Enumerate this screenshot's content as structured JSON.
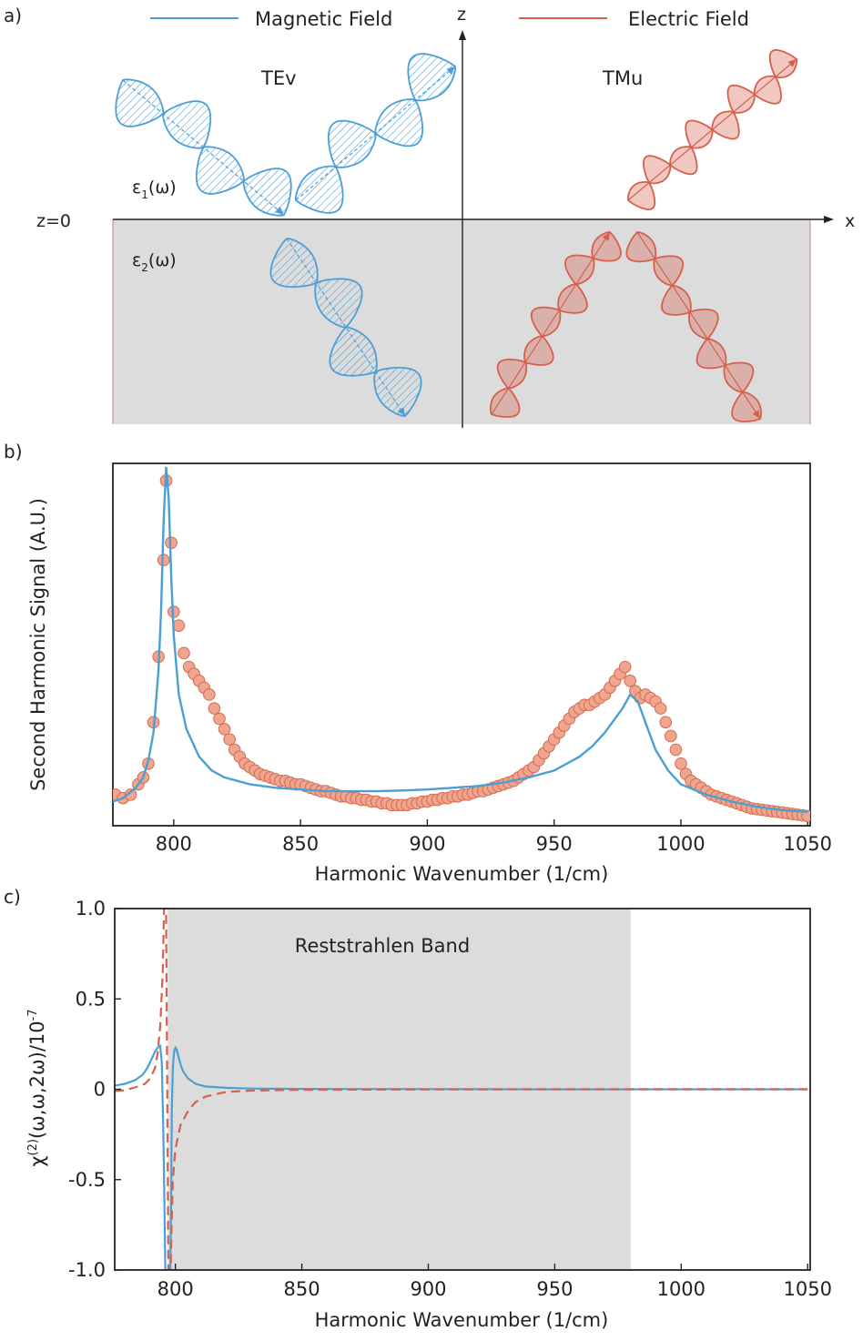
{
  "panels": {
    "a": {
      "label": "a)",
      "legend": {
        "magnetic": "Magnetic Field",
        "electric": "Electric Field"
      },
      "axis_z": "z",
      "axis_x": "x",
      "z0_label": "z=0",
      "teV_label": "TEv",
      "tmu_label": "TMu",
      "eps1_base": "ε",
      "eps1_sub": "1",
      "eps1_arg": "(ω)",
      "eps2_base": "ε",
      "eps2_sub": "2",
      "eps2_arg": "(ω)",
      "colors": {
        "magnetic": "#4c9fd6",
        "electric": "#d6604d",
        "medium": "#dcdcdc"
      }
    },
    "b": {
      "label": "b)"
    },
    "c": {
      "label": "c)",
      "band_label": "Reststrahlen Band"
    }
  },
  "chart_data": [
    {
      "panel": "b",
      "type": "scatter",
      "xlabel": "Harmonic Wavenumber (1/cm)",
      "ylabel": "Second Harmonic Signal (A.U.)",
      "xlim": [
        776,
        1051
      ],
      "ylim": [
        0,
        1.05
      ],
      "xticks": [
        800,
        850,
        900,
        950,
        1000,
        1050
      ],
      "grid": false,
      "series": [
        {
          "kind": "markers",
          "color": "#f0a58e",
          "edge": "#d46a50",
          "x": [
            777,
            780,
            783,
            786,
            788,
            790,
            792,
            794,
            796,
            797,
            799,
            800,
            802,
            804,
            806,
            808,
            810,
            812,
            814,
            816,
            818,
            820,
            822,
            824,
            826,
            828,
            830,
            832,
            834,
            836,
            838,
            840,
            842,
            844,
            846,
            848,
            850,
            852,
            854,
            856,
            858,
            860,
            862,
            864,
            866,
            868,
            870,
            872,
            874,
            876,
            878,
            880,
            882,
            884,
            886,
            888,
            890,
            892,
            894,
            896,
            898,
            900,
            902,
            904,
            906,
            908,
            910,
            912,
            914,
            916,
            918,
            920,
            922,
            924,
            926,
            928,
            930,
            932,
            934,
            936,
            938,
            940,
            942,
            944,
            946,
            948,
            950,
            952,
            954,
            956,
            958,
            960,
            962,
            964,
            966,
            968,
            970,
            972,
            974,
            976,
            978,
            980,
            982,
            984,
            986,
            988,
            990,
            992,
            994,
            996,
            998,
            1000,
            1002,
            1004,
            1006,
            1008,
            1010,
            1012,
            1014,
            1016,
            1018,
            1020,
            1022,
            1024,
            1026,
            1028,
            1030,
            1032,
            1034,
            1036,
            1038,
            1040,
            1042,
            1044,
            1046,
            1048,
            1050
          ],
          "y": [
            0.09,
            0.08,
            0.09,
            0.12,
            0.14,
            0.18,
            0.3,
            0.49,
            0.77,
            1.0,
            0.82,
            0.62,
            0.58,
            0.5,
            0.46,
            0.44,
            0.42,
            0.4,
            0.38,
            0.34,
            0.31,
            0.28,
            0.25,
            0.22,
            0.2,
            0.18,
            0.17,
            0.16,
            0.15,
            0.145,
            0.14,
            0.135,
            0.13,
            0.13,
            0.125,
            0.12,
            0.12,
            0.115,
            0.11,
            0.105,
            0.1,
            0.1,
            0.095,
            0.09,
            0.085,
            0.085,
            0.08,
            0.08,
            0.075,
            0.075,
            0.07,
            0.07,
            0.065,
            0.065,
            0.06,
            0.06,
            0.06,
            0.06,
            0.065,
            0.065,
            0.07,
            0.07,
            0.075,
            0.075,
            0.08,
            0.08,
            0.085,
            0.085,
            0.09,
            0.09,
            0.095,
            0.1,
            0.1,
            0.105,
            0.11,
            0.115,
            0.12,
            0.125,
            0.13,
            0.14,
            0.15,
            0.16,
            0.17,
            0.19,
            0.21,
            0.23,
            0.25,
            0.27,
            0.29,
            0.31,
            0.33,
            0.34,
            0.35,
            0.35,
            0.36,
            0.37,
            0.38,
            0.4,
            0.42,
            0.44,
            0.46,
            0.42,
            0.39,
            0.37,
            0.38,
            0.37,
            0.36,
            0.34,
            0.3,
            0.26,
            0.22,
            0.18,
            0.15,
            0.13,
            0.12,
            0.11,
            0.1,
            0.09,
            0.085,
            0.08,
            0.075,
            0.07,
            0.065,
            0.06,
            0.055,
            0.05,
            0.048,
            0.046,
            0.044,
            0.042,
            0.04,
            0.038,
            0.036,
            0.034,
            0.032,
            0.03,
            0.028
          ]
        },
        {
          "kind": "line",
          "color": "#4a9fd4",
          "x": [
            776,
            780,
            785,
            788,
            790,
            792,
            794,
            795,
            796,
            797,
            798,
            799,
            800,
            802,
            805,
            810,
            815,
            820,
            830,
            840,
            850,
            860,
            870,
            880,
            890,
            900,
            910,
            920,
            930,
            940,
            950,
            960,
            965,
            970,
            974,
            977,
            980,
            983,
            986,
            990,
            995,
            1000,
            1010,
            1020,
            1030,
            1040,
            1050
          ],
          "y": [
            0.07,
            0.08,
            0.11,
            0.14,
            0.19,
            0.27,
            0.45,
            0.62,
            0.88,
            1.04,
            0.95,
            0.72,
            0.55,
            0.38,
            0.28,
            0.2,
            0.16,
            0.14,
            0.12,
            0.11,
            0.105,
            0.1,
            0.1,
            0.1,
            0.102,
            0.105,
            0.11,
            0.115,
            0.125,
            0.14,
            0.16,
            0.2,
            0.23,
            0.27,
            0.31,
            0.34,
            0.38,
            0.36,
            0.3,
            0.22,
            0.16,
            0.12,
            0.09,
            0.07,
            0.055,
            0.045,
            0.04
          ]
        }
      ]
    },
    {
      "panel": "c",
      "type": "line",
      "xlabel": "Harmonic Wavenumber (1/cm)",
      "ylabel_base": "χ",
      "ylabel_sup": "(2)",
      "ylabel_rest": "(ω,ω,2ω)/10",
      "ylabel_exp": "-7",
      "xlim": [
        776,
        1051
      ],
      "ylim": [
        -1.0,
        1.0
      ],
      "xticks": [
        800,
        850,
        900,
        950,
        1000,
        1050
      ],
      "yticks": [
        -1.0,
        -0.5,
        0,
        0.5,
        1.0
      ],
      "ytick_labels": [
        "-1.0",
        "-0.5",
        "0",
        "0.5",
        "1.0"
      ],
      "shaded_band": [
        797,
        980
      ],
      "grid": false,
      "series": [
        {
          "kind": "solid",
          "color": "#4a9fd4",
          "x": [
            776,
            780,
            784,
            787,
            789,
            791,
            792,
            793,
            794,
            794.6,
            795.2,
            795.6,
            796,
            796.4,
            796.8,
            797.2,
            797.6,
            798,
            798.3,
            798.6,
            799,
            799.5,
            800,
            800.5,
            801,
            802,
            803,
            805,
            808,
            812,
            820,
            830,
            850,
            900,
            950,
            1000,
            1050
          ],
          "y": [
            0.02,
            0.03,
            0.05,
            0.08,
            0.12,
            0.18,
            0.21,
            0.23,
            0.24,
            0.15,
            -0.2,
            -0.6,
            -1.0,
            -1.0,
            -1.0,
            -1.0,
            -1.0,
            -1.0,
            -0.6,
            -0.1,
            0.12,
            0.21,
            0.23,
            0.22,
            0.19,
            0.14,
            0.1,
            0.06,
            0.03,
            0.015,
            0.008,
            0.004,
            0.002,
            0.001,
            0.0,
            0.0,
            0.0
          ]
        },
        {
          "kind": "dashed",
          "color": "#d6604d",
          "x": [
            776,
            780,
            784,
            788,
            790,
            792,
            793,
            794,
            795,
            795.5,
            796,
            796.3,
            796.6,
            796.9,
            797.2,
            797.5,
            797.8,
            798.1,
            798.5,
            799,
            800,
            802,
            805,
            808,
            812,
            820,
            830,
            850,
            900,
            950,
            1000,
            1050
          ],
          "y": [
            -0.01,
            -0.005,
            0.01,
            0.03,
            0.06,
            0.12,
            0.2,
            0.35,
            0.65,
            1.0,
            1.0,
            1.0,
            0.4,
            -0.3,
            -1.0,
            -1.0,
            -1.0,
            -1.0,
            -0.75,
            -0.5,
            -0.33,
            -0.2,
            -0.12,
            -0.07,
            -0.04,
            -0.015,
            -0.007,
            -0.003,
            -0.001,
            0.0,
            0.0,
            0.0
          ]
        }
      ]
    }
  ]
}
